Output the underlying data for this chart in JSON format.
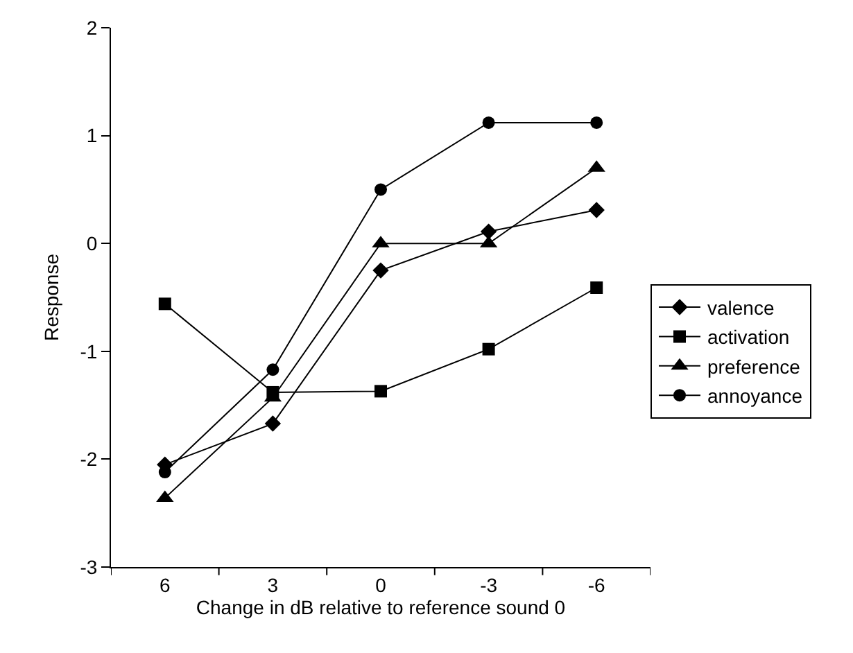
{
  "chart_data": {
    "type": "line",
    "xlabel": "Change in dB relative to reference sound 0",
    "ylabel": "Response",
    "categories": [
      "6",
      "3",
      "0",
      "-3",
      "-6"
    ],
    "series": [
      {
        "name": "valence",
        "color": "#000000",
        "marker": "diamond",
        "values": [
          -2.05,
          -1.67,
          -0.25,
          0.11,
          0.31
        ]
      },
      {
        "name": "activation",
        "color": "#000000",
        "marker": "square",
        "values": [
          -0.56,
          -1.38,
          -1.37,
          -0.98,
          -0.41
        ]
      },
      {
        "name": "preference",
        "color": "#000000",
        "marker": "triangle",
        "values": [
          -2.36,
          -1.43,
          0,
          0,
          0.7
        ]
      },
      {
        "name": "annoyance",
        "color": "#000000",
        "marker": "circle",
        "values": [
          -2.12,
          -1.17,
          0.5,
          1.12,
          1.12
        ]
      }
    ],
    "ylim": [
      -3,
      2
    ],
    "yticks": [
      -3,
      -2,
      -1,
      0,
      1,
      2
    ],
    "grid": false,
    "legend": "right",
    "line_style": "solid"
  }
}
